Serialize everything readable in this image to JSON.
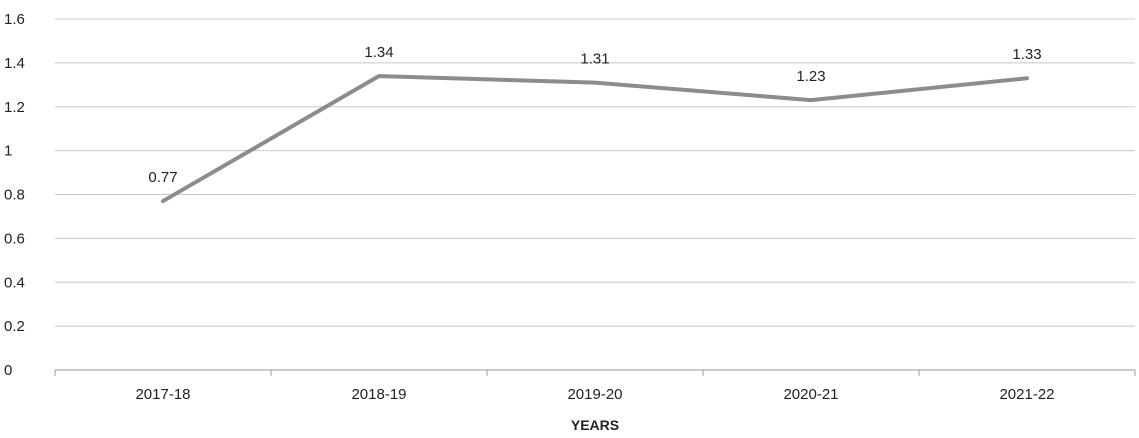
{
  "chart_data": {
    "type": "line",
    "title": "",
    "xlabel": "YEARS",
    "ylabel": "",
    "categories": [
      "2017-18",
      "2018-19",
      "2019-20",
      "2020-21",
      "2021-22"
    ],
    "series": [
      {
        "values": [
          0.77,
          1.34,
          1.31,
          1.23,
          1.33
        ]
      }
    ],
    "ylim": [
      0,
      1.6
    ],
    "yticks": [
      "0",
      "0.2",
      "0.4",
      "0.6",
      "0.8",
      "1",
      "1.2",
      "1.4",
      "1.6"
    ],
    "data_labels": [
      "0.77",
      "1.34",
      "1.31",
      "1.23",
      "1.33"
    ],
    "grid": true,
    "legend": "none",
    "line_color": "#8c8c8c"
  }
}
